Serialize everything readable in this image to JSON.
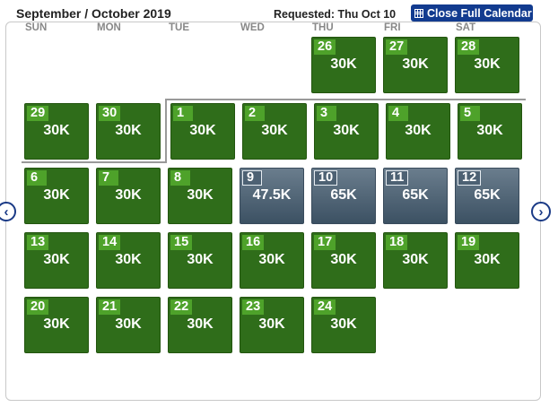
{
  "header": {
    "title": "September / October 2019",
    "requested": "Requested: Thu Oct 10",
    "close_label": "Close Full Calendar"
  },
  "weekdays": [
    "SUN",
    "MON",
    "TUE",
    "WED",
    "THU",
    "FRI",
    "SAT"
  ],
  "nav": {
    "prev_glyph": "‹",
    "next_glyph": "›"
  },
  "days": [
    {
      "day": "26",
      "price": "30K",
      "style": "green"
    },
    {
      "day": "27",
      "price": "30K",
      "style": "green"
    },
    {
      "day": "28",
      "price": "30K",
      "style": "green"
    },
    {
      "day": "29",
      "price": "30K",
      "style": "green"
    },
    {
      "day": "30",
      "price": "30K",
      "style": "green"
    },
    {
      "day": "1",
      "price": "30K",
      "style": "green"
    },
    {
      "day": "2",
      "price": "30K",
      "style": "green"
    },
    {
      "day": "3",
      "price": "30K",
      "style": "green"
    },
    {
      "day": "4",
      "price": "30K",
      "style": "green"
    },
    {
      "day": "5",
      "price": "30K",
      "style": "green"
    },
    {
      "day": "6",
      "price": "30K",
      "style": "green"
    },
    {
      "day": "7",
      "price": "30K",
      "style": "green"
    },
    {
      "day": "8",
      "price": "30K",
      "style": "green"
    },
    {
      "day": "9",
      "price": "47.5K",
      "style": "slate"
    },
    {
      "day": "10",
      "price": "65K",
      "style": "slate"
    },
    {
      "day": "11",
      "price": "65K",
      "style": "slate"
    },
    {
      "day": "12",
      "price": "65K",
      "style": "slate"
    },
    {
      "day": "13",
      "price": "30K",
      "style": "green"
    },
    {
      "day": "14",
      "price": "30K",
      "style": "green"
    },
    {
      "day": "15",
      "price": "30K",
      "style": "green"
    },
    {
      "day": "16",
      "price": "30K",
      "style": "green"
    },
    {
      "day": "17",
      "price": "30K",
      "style": "green"
    },
    {
      "day": "18",
      "price": "30K",
      "style": "green"
    },
    {
      "day": "19",
      "price": "30K",
      "style": "green"
    },
    {
      "day": "20",
      "price": "30K",
      "style": "green"
    },
    {
      "day": "21",
      "price": "30K",
      "style": "green"
    },
    {
      "day": "22",
      "price": "30K",
      "style": "green"
    },
    {
      "day": "23",
      "price": "30K",
      "style": "green"
    },
    {
      "day": "24",
      "price": "30K",
      "style": "green"
    }
  ]
}
